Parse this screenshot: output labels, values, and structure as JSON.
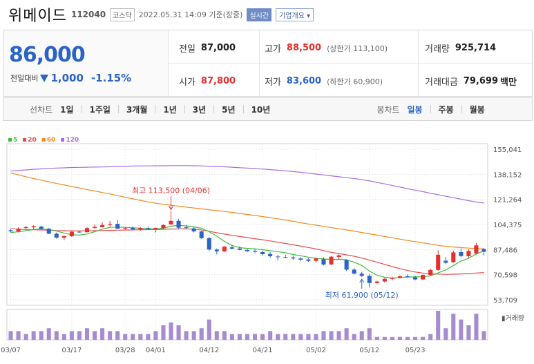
{
  "stock": {
    "name": "위메이드",
    "code": "112040",
    "market": "코스닥",
    "timestamp": "2022.05.31 14:09 기준(장중)",
    "realtime_label": "실시간",
    "company_info_label": "기업개요"
  },
  "quote": {
    "price": "86,000",
    "change_label": "전일대비",
    "change": "1,000",
    "change_pct": "-1.15%",
    "prev_close_label": "전일",
    "prev_close": "87,000",
    "open_label": "시가",
    "open": "87,800",
    "high_label": "고가",
    "high": "88,500",
    "upper_limit_label": "(상한가 113,100)",
    "low_label": "저가",
    "low": "83,600",
    "lower_limit_label": "(하한가 60,900)",
    "volume_label": "거래량",
    "volume": "925,714",
    "amount_label": "거래대금",
    "amount": "79,699",
    "amount_unit": "백만"
  },
  "toolbar": {
    "range_group_label": "선차트",
    "ranges": [
      "1일",
      "1주일",
      "3개월",
      "1년",
      "3년",
      "5년",
      "10년"
    ],
    "candle_group_label": "봉차트",
    "candles": [
      "일봉",
      "주봉",
      "월봉"
    ],
    "active_candle": "일봉"
  },
  "colors": {
    "up": "#e5302d",
    "down": "#2c64c6",
    "ma5": "#3dbb3d",
    "ma20": "#e84a4a",
    "ma60": "#f28a1e",
    "ma120": "#a86ee0",
    "volume": "#a78bd1"
  },
  "chart_data": {
    "type": "candlestick",
    "legend": [
      {
        "name": "5",
        "color": "#3dbb3d"
      },
      {
        "name": "20",
        "color": "#e84a4a"
      },
      {
        "name": "60",
        "color": "#f28a1e"
      },
      {
        "name": "120",
        "color": "#a86ee0"
      }
    ],
    "y_ticks": [
      "155,041",
      "138,152",
      "121,264",
      "104,375",
      "87,486",
      "70,598",
      "53,709"
    ],
    "ylim": [
      53709,
      155041
    ],
    "x_ticks": [
      {
        "label": "03/07",
        "index": 0
      },
      {
        "label": "03/17",
        "index": 8
      },
      {
        "label": "03/28",
        "index": 15
      },
      {
        "label": "04/01",
        "index": 19
      },
      {
        "label": "04/12",
        "index": 26
      },
      {
        "label": "04/21",
        "index": 33
      },
      {
        "label": "05/02",
        "index": 40
      },
      {
        "label": "05/12",
        "index": 47
      },
      {
        "label": "05/23",
        "index": 53
      }
    ],
    "max_annotation": "최고 113,500 (04/06)",
    "max_index": 21,
    "min_annotation": "최저 61,900 (05/12)",
    "min_index": 46,
    "volume_label": "거래량",
    "candles": [
      [
        100500,
        101500,
        99000,
        99800
      ],
      [
        99800,
        102500,
        99000,
        101600
      ],
      [
        102000,
        103500,
        101000,
        102600
      ],
      [
        102500,
        103800,
        101200,
        103200
      ],
      [
        103000,
        103600,
        100800,
        101500
      ],
      [
        101500,
        102000,
        97800,
        98200
      ],
      [
        98200,
        99000,
        94800,
        95500
      ],
      [
        95500,
        97000,
        93800,
        96600
      ],
      [
        96500,
        99800,
        96000,
        99500
      ],
      [
        99500,
        100200,
        98800,
        99000
      ],
      [
        99200,
        102500,
        99000,
        101900
      ],
      [
        102000,
        104400,
        101500,
        102800
      ],
      [
        102500,
        106000,
        102300,
        104000
      ],
      [
        104200,
        106800,
        103000,
        104800
      ],
      [
        104800,
        107500,
        101200,
        101600
      ],
      [
        101600,
        102800,
        100800,
        102000
      ],
      [
        102000,
        103200,
        100600,
        101000
      ],
      [
        101000,
        102500,
        100200,
        102000
      ],
      [
        102000,
        103000,
        101000,
        101600
      ],
      [
        101000,
        102300,
        99000,
        102000
      ],
      [
        102000,
        104500,
        101500,
        104000
      ],
      [
        104500,
        113500,
        103800,
        106800
      ],
      [
        106800,
        108200,
        101200,
        102200
      ],
      [
        102500,
        104000,
        101000,
        102000
      ],
      [
        101800,
        102800,
        99000,
        99700
      ],
      [
        99700,
        100200,
        94500,
        95200
      ],
      [
        95200,
        96000,
        86500,
        87500
      ],
      [
        87500,
        88200,
        84200,
        86300
      ],
      [
        86200,
        89800,
        86000,
        89500
      ],
      [
        89000,
        90500,
        87800,
        88100
      ],
      [
        88200,
        89500,
        86900,
        87300
      ],
      [
        87200,
        88000,
        85800,
        86400
      ],
      [
        86400,
        87800,
        85200,
        85900
      ],
      [
        85800,
        86600,
        83600,
        84400
      ],
      [
        84500,
        85800,
        82000,
        83000
      ],
      [
        82800,
        83900,
        80300,
        82700
      ],
      [
        82500,
        84000,
        81700,
        82300
      ],
      [
        82200,
        83500,
        80500,
        81500
      ],
      [
        81500,
        82500,
        79800,
        80700
      ],
      [
        80800,
        81800,
        79200,
        79900
      ],
      [
        79900,
        82000,
        79000,
        81500
      ],
      [
        81000,
        82200,
        76800,
        77400
      ],
      [
        77500,
        83200,
        77000,
        82700
      ],
      [
        82500,
        84800,
        81200,
        83600
      ],
      [
        80500,
        81000,
        73000,
        74000
      ],
      [
        74000,
        75000,
        70700,
        71300
      ],
      [
        71300,
        72500,
        69000,
        69800
      ],
      [
        69800,
        71000,
        61900,
        65000
      ],
      [
        65000,
        66500,
        64500,
        66000
      ],
      [
        66000,
        68200,
        65400,
        67800
      ],
      [
        67800,
        69200,
        66800,
        68600
      ],
      [
        68600,
        70200,
        68000,
        69500
      ],
      [
        69500,
        70800,
        68500,
        69300
      ],
      [
        68800,
        70000,
        66800,
        67400
      ],
      [
        67400,
        70800,
        67000,
        70400
      ],
      [
        70400,
        74500,
        70000,
        73800
      ],
      [
        73800,
        87000,
        73200,
        84000
      ],
      [
        80000,
        82500,
        77800,
        78600
      ],
      [
        79000,
        86800,
        78600,
        85600
      ],
      [
        85800,
        88200,
        82200,
        83100
      ],
      [
        83000,
        87800,
        82000,
        86600
      ],
      [
        84800,
        92000,
        84500,
        90300
      ],
      [
        87800,
        88500,
        83600,
        86000
      ]
    ],
    "volumes": [
      3,
      3,
      2,
      3,
      3,
      4,
      3,
      2,
      3,
      3,
      4,
      3,
      4,
      3,
      3,
      2,
      2,
      2,
      2,
      3,
      5,
      6,
      5,
      3,
      3,
      4,
      7,
      3,
      3,
      2,
      2,
      2,
      2,
      2,
      3,
      2,
      2,
      2,
      2,
      2,
      2,
      3,
      3,
      3,
      4,
      2,
      3,
      4,
      1,
      1,
      1,
      1,
      1,
      1,
      1,
      2,
      10,
      4,
      9,
      7,
      5,
      9,
      3
    ],
    "ma5": [
      99000,
      99500,
      100200,
      101000,
      101500,
      101000,
      100000,
      98500,
      97500,
      97200,
      98000,
      99500,
      101200,
      102400,
      102600,
      102400,
      102200,
      101800,
      101400,
      101400,
      101800,
      103200,
      103800,
      103400,
      102800,
      101800,
      99500,
      96500,
      93000,
      90200,
      88800,
      88300,
      88000,
      87400,
      86700,
      86100,
      85300,
      84200,
      83300,
      82400,
      81700,
      81200,
      80800,
      80900,
      80600,
      79000,
      76800,
      73000,
      70200,
      68800,
      68300,
      68600,
      69000,
      69100,
      69200,
      69800,
      71800,
      73800,
      76800,
      79700,
      81700,
      84500,
      86800
    ],
    "ma20": [
      101500,
      101200,
      101000,
      100800,
      100700,
      100500,
      100300,
      100200,
      100100,
      100100,
      100100,
      100200,
      100300,
      100400,
      100500,
      100600,
      100700,
      100800,
      100900,
      101000,
      101100,
      101300,
      101400,
      101400,
      101200,
      100700,
      99800,
      98800,
      97900,
      97100,
      96300,
      95600,
      94800,
      94100,
      93300,
      92400,
      91600,
      90700,
      89800,
      88900,
      87900,
      86800,
      85600,
      84800,
      83900,
      83000,
      81800,
      80400,
      79000,
      77500,
      76000,
      74600,
      73400,
      72400,
      71700,
      71200,
      71000,
      70800,
      70900,
      71100,
      71400,
      71700,
      72000
    ],
    "ma60": [
      139000,
      137800,
      136500,
      135300,
      134200,
      133100,
      132000,
      130900,
      129900,
      128900,
      127900,
      126900,
      125900,
      124900,
      123800,
      122700,
      121600,
      120600,
      119600,
      118700,
      117900,
      117300,
      116700,
      116100,
      115500,
      114900,
      114300,
      113700,
      113100,
      112500,
      111800,
      111100,
      110400,
      109700,
      109000,
      108200,
      107400,
      106500,
      105600,
      104700,
      103900,
      103100,
      102300,
      101500,
      100700,
      99900,
      99000,
      98100,
      97200,
      96300,
      95400,
      94500,
      93600,
      92800,
      92000,
      91200,
      90400,
      89700,
      89200,
      88800,
      88500,
      88200,
      87900
    ],
    "ma120": [
      140300,
      140700,
      141100,
      141500,
      141800,
      142100,
      142300,
      142500,
      142700,
      142800,
      142900,
      143000,
      143100,
      143200,
      143400,
      143600,
      143700,
      143800,
      143800,
      143900,
      143900,
      144000,
      144000,
      144000,
      143900,
      143800,
      143600,
      143400,
      143200,
      142900,
      142600,
      142300,
      142000,
      141700,
      141300,
      140900,
      140500,
      140000,
      139500,
      138900,
      138300,
      137700,
      137100,
      136500,
      135900,
      135300,
      134600,
      133700,
      132700,
      131700,
      130600,
      129500,
      128500,
      127500,
      126500,
      125400,
      124400,
      123400,
      122400,
      121400,
      120400,
      119500,
      118800
    ]
  }
}
